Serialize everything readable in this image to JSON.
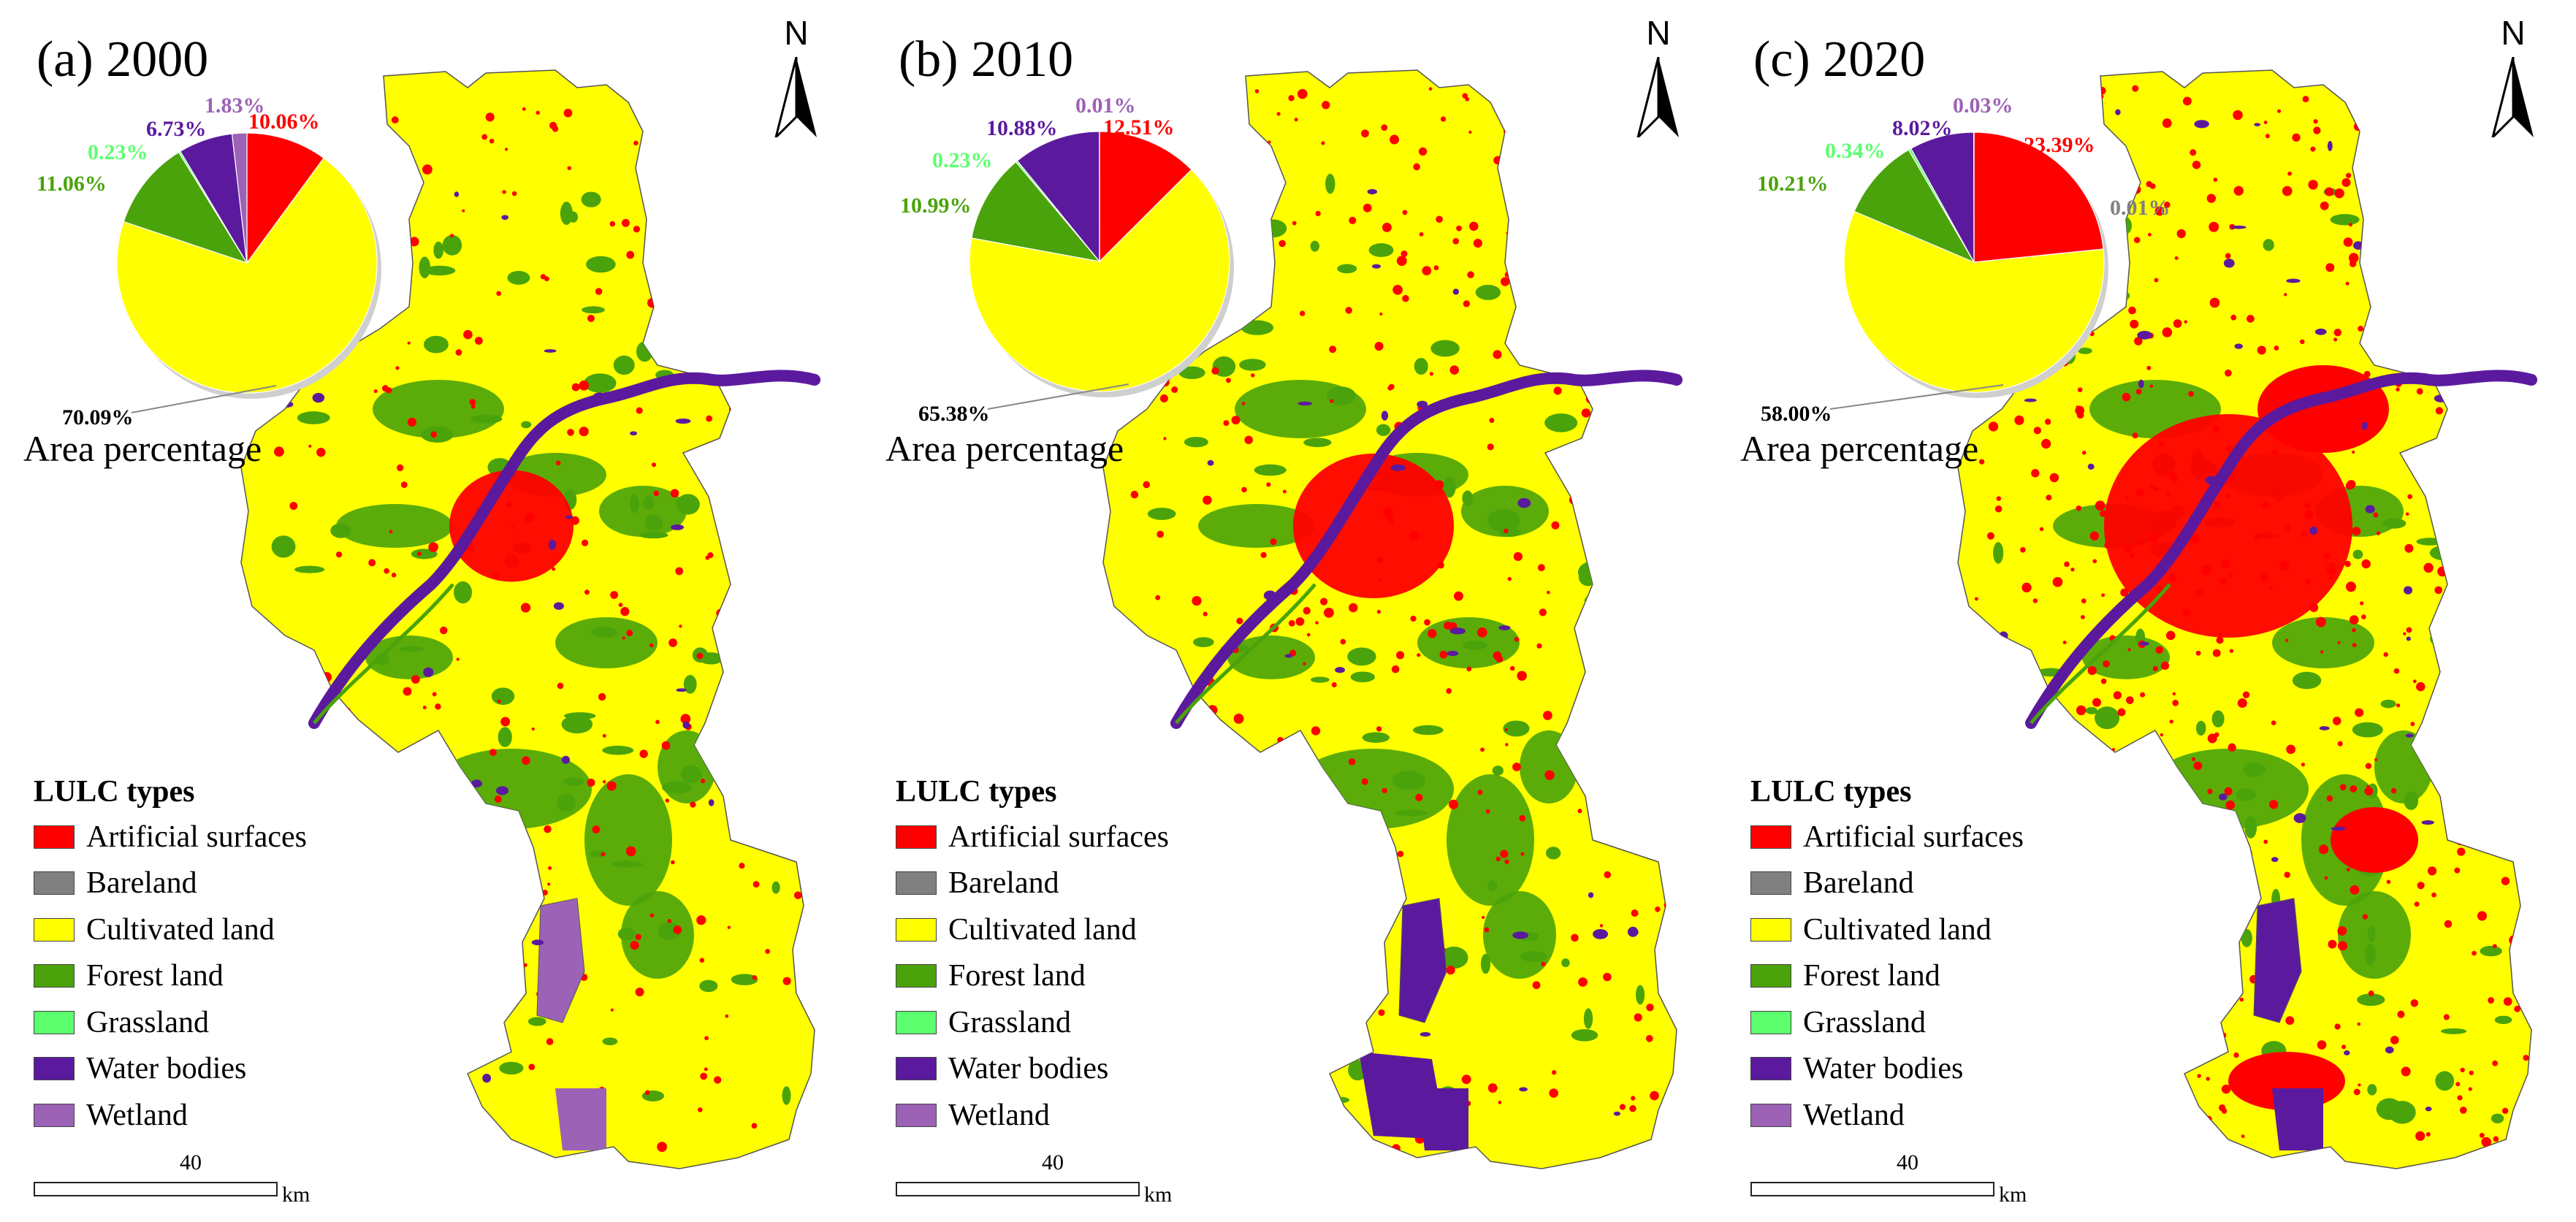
{
  "colors": {
    "artificial": "#ff0000",
    "bareland": "#808080",
    "cultivated": "#ffff00",
    "forest": "#4aa30a",
    "grassland": "#5cff6e",
    "water": "#5b1a9e",
    "wetland": "#9c62b6"
  },
  "north_label": "N",
  "legend": {
    "title": "LULC types",
    "items": [
      {
        "label": "Artificial surfaces",
        "color": "#ff0000"
      },
      {
        "label": "Bareland",
        "color": "#808080"
      },
      {
        "label": "Cultivated land",
        "color": "#ffff00"
      },
      {
        "label": "Forest land",
        "color": "#4aa30a"
      },
      {
        "label": "Grassland",
        "color": "#5cff6e"
      },
      {
        "label": "Water bodies",
        "color": "#5b1a9e"
      },
      {
        "label": "Wetland",
        "color": "#9c62b6"
      }
    ]
  },
  "scalebar": {
    "value": "40",
    "unit": "km"
  },
  "panels": [
    {
      "title": "(a) 2000",
      "caption": "Area percentage",
      "wetland_present": true
    },
    {
      "title": "(b) 2010",
      "caption": "Area percentage",
      "wetland_present": false
    },
    {
      "title": "(c) 2020",
      "caption": "Area percentage",
      "wetland_present": false
    }
  ],
  "chart_data": [
    {
      "type": "pie",
      "title": "(a) 2000",
      "caption": "Area percentage",
      "slices": [
        {
          "name": "Artificial surfaces",
          "value": 10.06,
          "label": "10.06%",
          "color": "#ff0000"
        },
        {
          "name": "Cultivated land",
          "value": 70.09,
          "label": "70.09%",
          "color": "#ffff00"
        },
        {
          "name": "Forest land",
          "value": 11.06,
          "label": "11.06%",
          "color": "#4aa30a"
        },
        {
          "name": "Grassland",
          "value": 0.23,
          "label": "0.23%",
          "color": "#5cff6e"
        },
        {
          "name": "Water bodies",
          "value": 6.73,
          "label": "6.73%",
          "color": "#5b1a9e"
        },
        {
          "name": "Wetland",
          "value": 1.83,
          "label": "1.83%",
          "color": "#9c62b6"
        }
      ]
    },
    {
      "type": "pie",
      "title": "(b) 2010",
      "caption": "Area percentage",
      "slices": [
        {
          "name": "Artificial surfaces",
          "value": 12.51,
          "label": "12.51%",
          "color": "#ff0000"
        },
        {
          "name": "Cultivated land",
          "value": 65.38,
          "label": "65.38%",
          "color": "#ffff00"
        },
        {
          "name": "Forest land",
          "value": 10.99,
          "label": "10.99%",
          "color": "#4aa30a"
        },
        {
          "name": "Grassland",
          "value": 0.23,
          "label": "0.23%",
          "color": "#5cff6e"
        },
        {
          "name": "Water bodies",
          "value": 10.88,
          "label": "10.88%",
          "color": "#5b1a9e"
        },
        {
          "name": "Wetland",
          "value": 0.01,
          "label": "0.01%",
          "color": "#9c62b6"
        }
      ]
    },
    {
      "type": "pie",
      "title": "(c) 2020",
      "caption": "Area percentage",
      "slices": [
        {
          "name": "Artificial surfaces",
          "value": 23.39,
          "label": "23.39%",
          "color": "#ff0000"
        },
        {
          "name": "Bareland",
          "value": 0.01,
          "label": "0.01%",
          "color": "#808080"
        },
        {
          "name": "Cultivated land",
          "value": 58.0,
          "label": "58.00%",
          "color": "#ffff00"
        },
        {
          "name": "Forest land",
          "value": 10.21,
          "label": "10.21%",
          "color": "#4aa30a"
        },
        {
          "name": "Grassland",
          "value": 0.34,
          "label": "0.34%",
          "color": "#5cff6e"
        },
        {
          "name": "Water bodies",
          "value": 8.02,
          "label": "8.02%",
          "color": "#5b1a9e"
        },
        {
          "name": "Wetland",
          "value": 0.03,
          "label": "0.03%",
          "color": "#9c62b6"
        }
      ]
    }
  ]
}
